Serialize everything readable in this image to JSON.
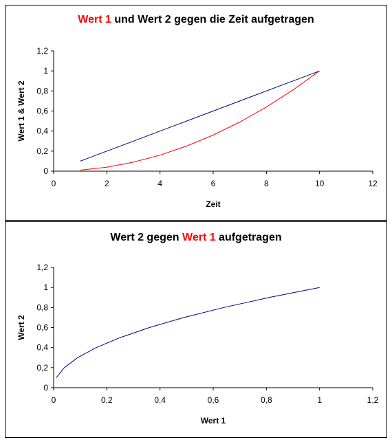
{
  "chart_data": [
    {
      "type": "line",
      "title_parts": [
        "Wert 1",
        " und Wert 2 gegen die Zeit aufgetragen"
      ],
      "title_colors": [
        "#ff0000",
        "#000000"
      ],
      "xlabel": "Zeit",
      "ylabel": "Wert 1 & Wert 2",
      "xlim": [
        0,
        12
      ],
      "ylim": [
        0,
        1.2
      ],
      "xticks": [
        "0",
        "2",
        "4",
        "6",
        "8",
        "10",
        "12"
      ],
      "yticks": [
        "0",
        "0,2",
        "0,4",
        "0,6",
        "0,8",
        "1",
        "1,2"
      ],
      "grid": false,
      "legend": "none",
      "series": [
        {
          "color": "#000080",
          "x": [
            1,
            2,
            3,
            4,
            5,
            6,
            7,
            8,
            9,
            10
          ],
          "y": [
            0.1,
            0.2,
            0.3,
            0.4,
            0.5,
            0.6,
            0.7,
            0.8,
            0.9,
            1.0
          ]
        },
        {
          "color": "#ff0000",
          "x": [
            1,
            2,
            3,
            4,
            5,
            6,
            7,
            8,
            9,
            10
          ],
          "y": [
            0.01,
            0.04,
            0.09,
            0.16,
            0.25,
            0.36,
            0.49,
            0.64,
            0.81,
            1.0
          ]
        }
      ]
    },
    {
      "type": "line",
      "title_parts": [
        "Wert 2 gegen ",
        "Wert 1",
        " aufgetragen"
      ],
      "title_colors": [
        "#000000",
        "#ff0000",
        "#000000"
      ],
      "xlabel": "Wert 1",
      "ylabel": "Wert 2",
      "xlim": [
        0,
        1.2
      ],
      "ylim": [
        0,
        1.2
      ],
      "xticks": [
        "0",
        "0,2",
        "0,4",
        "0,6",
        "0,8",
        "1",
        "1,2"
      ],
      "yticks": [
        "0",
        "0,2",
        "0,4",
        "0,6",
        "0,8",
        "1",
        "1,2"
      ],
      "grid": false,
      "legend": "none",
      "series": [
        {
          "color": "#000080",
          "x": [
            0.01,
            0.04,
            0.09,
            0.16,
            0.25,
            0.36,
            0.49,
            0.64,
            0.81,
            1.0
          ],
          "y": [
            0.1,
            0.2,
            0.3,
            0.4,
            0.5,
            0.6,
            0.7,
            0.8,
            0.9,
            1.0
          ]
        }
      ]
    }
  ]
}
